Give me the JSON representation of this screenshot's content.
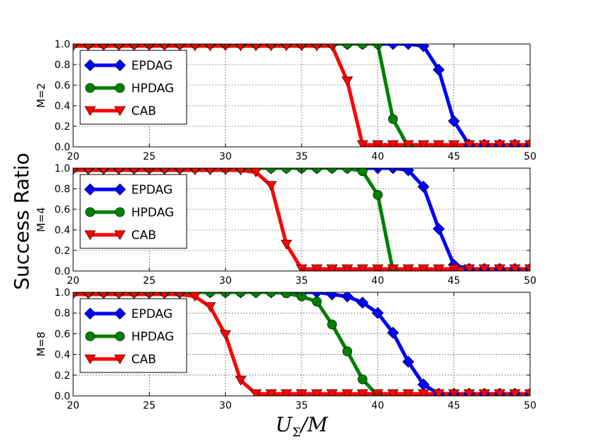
{
  "figure": {
    "ylabel": "Success Ratio",
    "xlabel_main": "U",
    "xlabel_sub": "Σ",
    "xlabel_tail": "/M"
  },
  "colors": {
    "EPDAG": "#0000ff",
    "HPDAG": "#008000",
    "CAB": "#ff0000"
  },
  "chart_data": [
    {
      "type": "line",
      "panel_label": "M=2",
      "x": [
        20,
        21,
        22,
        23,
        24,
        25,
        26,
        27,
        28,
        29,
        30,
        31,
        32,
        33,
        34,
        35,
        36,
        37,
        38,
        39,
        40,
        41,
        42,
        43,
        44,
        45,
        46,
        47,
        48,
        49,
        50
      ],
      "xlim": [
        20,
        50
      ],
      "ylim": [
        0,
        1
      ],
      "xticks": [
        "20",
        "25",
        "30",
        "35",
        "40",
        "45",
        "50"
      ],
      "yticks": [
        "0.0",
        "0.2",
        "0.4",
        "0.6",
        "0.8",
        "1.0"
      ],
      "grid": true,
      "legend_position": "upper-left",
      "series": [
        {
          "name": "EPDAG",
          "marker": "diamond",
          "values": [
            1,
            1,
            1,
            1,
            1,
            1,
            1,
            1,
            1,
            1,
            1,
            1,
            1,
            1,
            1,
            1,
            1,
            1,
            1,
            1,
            1,
            1,
            1,
            0.98,
            0.75,
            0.25,
            0.02,
            0.02,
            0.02,
            0.02,
            0.02
          ]
        },
        {
          "name": "HPDAG",
          "marker": "circle",
          "values": [
            1,
            1,
            1,
            1,
            1,
            1,
            1,
            1,
            1,
            1,
            1,
            1,
            1,
            1,
            1,
            1,
            1,
            1,
            1,
            1,
            1,
            0.27,
            0.0,
            null,
            null,
            null,
            null,
            null,
            null,
            null,
            null
          ]
        },
        {
          "name": "CAB",
          "marker": "triangle-down",
          "values": [
            0.98,
            0.98,
            0.98,
            0.98,
            0.98,
            0.98,
            0.98,
            0.98,
            0.98,
            0.98,
            0.98,
            0.98,
            0.98,
            0.98,
            0.98,
            0.98,
            0.98,
            0.98,
            0.64,
            0.02,
            0.02,
            0.02,
            0.02,
            0.02,
            0.02,
            0.02,
            0.02,
            0.02,
            0.02,
            0.02,
            0.02
          ]
        }
      ]
    },
    {
      "type": "line",
      "panel_label": "M=4",
      "x": [
        20,
        21,
        22,
        23,
        24,
        25,
        26,
        27,
        28,
        29,
        30,
        31,
        32,
        33,
        34,
        35,
        36,
        37,
        38,
        39,
        40,
        41,
        42,
        43,
        44,
        45,
        46,
        47,
        48,
        49,
        50
      ],
      "xlim": [
        20,
        50
      ],
      "ylim": [
        0,
        1
      ],
      "xticks": [
        "20",
        "25",
        "30",
        "35",
        "40",
        "45",
        "50"
      ],
      "yticks": [
        "0.0",
        "0.2",
        "0.4",
        "0.6",
        "0.8",
        "1.0"
      ],
      "grid": true,
      "legend_position": "upper-left",
      "series": [
        {
          "name": "EPDAG",
          "marker": "diamond",
          "values": [
            1,
            1,
            1,
            1,
            1,
            1,
            1,
            1,
            1,
            1,
            1,
            1,
            1,
            1,
            1,
            1,
            1,
            1,
            1,
            1,
            1,
            1,
            0.98,
            0.82,
            0.41,
            0.06,
            0.02,
            0.02,
            0.02,
            0.02,
            0.02
          ]
        },
        {
          "name": "HPDAG",
          "marker": "circle",
          "values": [
            1,
            1,
            1,
            1,
            1,
            1,
            1,
            1,
            1,
            1,
            1,
            1,
            1,
            1,
            1,
            1,
            1,
            1,
            1,
            0.97,
            0.74,
            0.0,
            null,
            null,
            null,
            null,
            null,
            null,
            null,
            null,
            null
          ]
        },
        {
          "name": "CAB",
          "marker": "triangle-down",
          "values": [
            0.98,
            0.98,
            0.98,
            0.98,
            0.98,
            0.98,
            0.98,
            0.98,
            0.98,
            0.98,
            0.98,
            0.98,
            0.96,
            0.83,
            0.26,
            0.02,
            0.02,
            0.02,
            0.02,
            0.02,
            0.02,
            0.02,
            0.02,
            0.02,
            0.02,
            0.02,
            0.02,
            0.02,
            0.02,
            0.02,
            0.02
          ]
        }
      ]
    },
    {
      "type": "line",
      "panel_label": "M=8",
      "x": [
        20,
        21,
        22,
        23,
        24,
        25,
        26,
        27,
        28,
        29,
        30,
        31,
        32,
        33,
        34,
        35,
        36,
        37,
        38,
        39,
        40,
        41,
        42,
        43,
        44,
        45,
        46,
        47,
        48,
        49,
        50
      ],
      "xlim": [
        20,
        50
      ],
      "ylim": [
        0,
        1
      ],
      "xticks": [
        "20",
        "25",
        "30",
        "35",
        "40",
        "45",
        "50"
      ],
      "yticks": [
        "0.0",
        "0.2",
        "0.4",
        "0.6",
        "0.8",
        "1.0"
      ],
      "grid": true,
      "legend_position": "upper-left",
      "series": [
        {
          "name": "EPDAG",
          "marker": "diamond",
          "values": [
            1,
            1,
            1,
            1,
            1,
            1,
            1,
            1,
            1,
            1,
            1,
            1,
            1,
            1,
            1,
            1,
            1,
            0.98,
            0.96,
            0.9,
            0.8,
            0.61,
            0.33,
            0.11,
            0.02,
            0.02,
            0.02,
            0.02,
            0.02,
            0.02,
            0.02
          ]
        },
        {
          "name": "HPDAG",
          "marker": "circle",
          "values": [
            1,
            1,
            1,
            1,
            1,
            1,
            1,
            1,
            1,
            1,
            1,
            1,
            1,
            1,
            0.99,
            0.96,
            0.91,
            0.69,
            0.43,
            0.16,
            0.0,
            null,
            null,
            null,
            null,
            null,
            null,
            null,
            null,
            null,
            null
          ]
        },
        {
          "name": "CAB",
          "marker": "triangle-down",
          "values": [
            0.98,
            0.98,
            0.98,
            0.98,
            0.98,
            0.98,
            0.98,
            0.98,
            0.96,
            0.86,
            0.59,
            0.15,
            0.02,
            0.02,
            0.02,
            0.02,
            0.02,
            0.02,
            0.02,
            0.02,
            0.02,
            0.02,
            0.02,
            0.02,
            0.02,
            0.02,
            0.02,
            0.02,
            0.02,
            0.02,
            0.02
          ]
        }
      ]
    }
  ]
}
